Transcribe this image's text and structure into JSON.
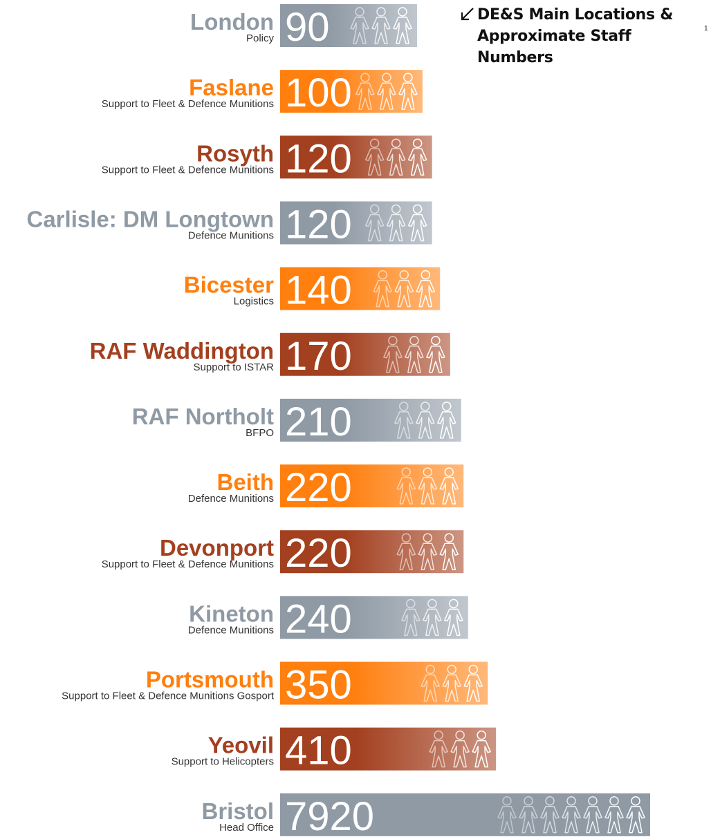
{
  "chart_data": {
    "type": "bar",
    "orientation": "horizontal",
    "log_scale": true,
    "title": "DE&S Main Locations & Approximate Staff Numbers",
    "title_note": "1",
    "categories": [
      "London",
      "Faslane",
      "Rosyth",
      "Carlisle: DM Longtown",
      "Bicester",
      "RAF Waddington",
      "RAF Northolt",
      "Beith",
      "Devonport",
      "Kineton",
      "Portsmouth",
      "Yeovil",
      "Bristol"
    ],
    "subtitles": [
      "Policy",
      "Support to Fleet & Defence Munitions",
      "Support to Fleet & Defence Munitions",
      "Defence Munitions",
      "Logistics",
      "Support to ISTAR",
      "BFPO",
      "Defence Munitions",
      "Support to Fleet & Defence Munitions",
      "Defence Munitions",
      "Support to Fleet & Defence Munitions Gosport",
      "Support to Helicopters",
      "Head Office"
    ],
    "values": [
      90,
      100,
      120,
      120,
      140,
      170,
      210,
      220,
      220,
      240,
      350,
      410,
      7920
    ],
    "colors": [
      "#8f9aa5",
      "#ff7f0f",
      "#a3401f",
      "#8f9aa5",
      "#ff7f0f",
      "#a3401f",
      "#8f9aa5",
      "#ff7f0f",
      "#a3401f",
      "#8f9aa5",
      "#ff7f0f",
      "#a3401f",
      "#8f9aa5"
    ]
  }
}
